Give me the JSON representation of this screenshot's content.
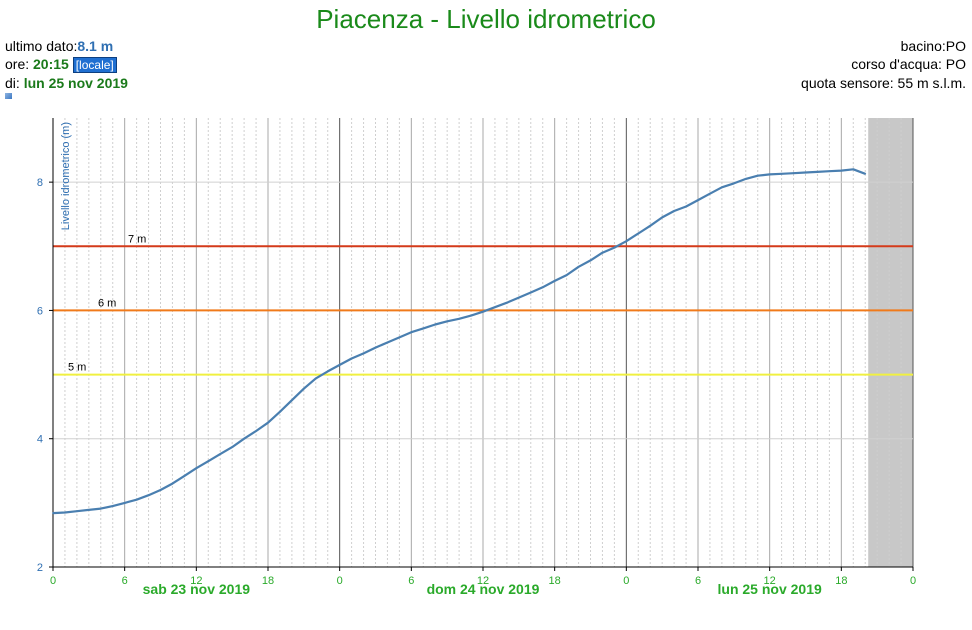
{
  "header": {
    "title": "Piacenza - Livello idrometrico",
    "ultimo_dato_label": "ultimo dato:",
    "ultimo_dato_value": "8.1 m",
    "ore_label": "ore:",
    "ore_value": "20:15",
    "timezone_button": "[locale]",
    "di_label": "di:",
    "di_value": "lun 25 nov 2019",
    "bacino": "bacino:PO",
    "corso_acqua": "corso d'acqua: PO",
    "quota_sensore": "quota sensore: 55 m s.l.m."
  },
  "colors": {
    "title": "#1a8a1a",
    "series": "#4a7fb0",
    "threshold_7": "#d43a1a",
    "threshold_6": "#f07a1a",
    "threshold_5": "#f0f040",
    "future_band": "#c8c8c8",
    "day_label": "#2aaa2a"
  },
  "chart_data": {
    "type": "line",
    "ylabel": "Livello idrometrico (m)",
    "ylim": [
      2,
      9
    ],
    "y_ticks": [
      "2",
      "4",
      "6",
      "8"
    ],
    "x_start_hour": 0,
    "x_end_hour": 72,
    "x_tick_labels": [
      "0",
      "6",
      "12",
      "18",
      "0",
      "6",
      "12",
      "18",
      "0",
      "6",
      "12",
      "18",
      "0"
    ],
    "day_labels": [
      "sab 23 nov 2019",
      "dom 24 nov 2019",
      "lun 25 nov 2019"
    ],
    "future_from_hour": 68.25,
    "thresholds": [
      {
        "label": "7 m",
        "value": 7
      },
      {
        "label": "6 m",
        "value": 6
      },
      {
        "label": "5 m",
        "value": 5
      }
    ],
    "series": [
      {
        "points": [
          [
            0,
            2.84
          ],
          [
            1,
            2.85
          ],
          [
            2,
            2.87
          ],
          [
            3,
            2.89
          ],
          [
            4,
            2.91
          ],
          [
            5,
            2.95
          ],
          [
            6,
            3.0
          ],
          [
            7,
            3.05
          ],
          [
            8,
            3.12
          ],
          [
            9,
            3.2
          ],
          [
            10,
            3.3
          ],
          [
            11,
            3.42
          ],
          [
            12,
            3.54
          ],
          [
            13,
            3.65
          ],
          [
            14,
            3.76
          ],
          [
            15,
            3.87
          ],
          [
            16,
            4.0
          ],
          [
            17,
            4.12
          ],
          [
            18,
            4.25
          ],
          [
            19,
            4.42
          ],
          [
            20,
            4.6
          ],
          [
            21,
            4.78
          ],
          [
            22,
            4.94
          ],
          [
            23,
            5.05
          ],
          [
            24,
            5.15
          ],
          [
            25,
            5.25
          ],
          [
            26,
            5.33
          ],
          [
            27,
            5.42
          ],
          [
            28,
            5.5
          ],
          [
            29,
            5.58
          ],
          [
            30,
            5.66
          ],
          [
            31,
            5.72
          ],
          [
            32,
            5.78
          ],
          [
            33,
            5.83
          ],
          [
            34,
            5.87
          ],
          [
            35,
            5.92
          ],
          [
            36,
            5.98
          ],
          [
            37,
            6.05
          ],
          [
            38,
            6.12
          ],
          [
            39,
            6.2
          ],
          [
            40,
            6.28
          ],
          [
            41,
            6.36
          ],
          [
            42,
            6.46
          ],
          [
            43,
            6.55
          ],
          [
            44,
            6.68
          ],
          [
            45,
            6.78
          ],
          [
            46,
            6.9
          ],
          [
            47,
            6.98
          ],
          [
            48,
            7.08
          ],
          [
            49,
            7.2
          ],
          [
            50,
            7.32
          ],
          [
            51,
            7.45
          ],
          [
            52,
            7.55
          ],
          [
            53,
            7.62
          ],
          [
            54,
            7.72
          ],
          [
            55,
            7.82
          ],
          [
            56,
            7.92
          ],
          [
            57,
            7.98
          ],
          [
            58,
            8.05
          ],
          [
            59,
            8.1
          ],
          [
            60,
            8.12
          ],
          [
            61,
            8.13
          ],
          [
            62,
            8.14
          ],
          [
            63,
            8.15
          ],
          [
            64,
            8.16
          ],
          [
            65,
            8.17
          ],
          [
            66,
            8.18
          ],
          [
            67,
            8.2
          ],
          [
            68,
            8.13
          ]
        ]
      }
    ]
  }
}
